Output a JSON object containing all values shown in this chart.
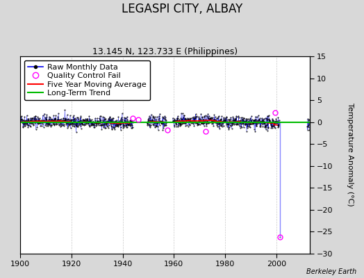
{
  "title": "LEGASPI CITY, ALBAY",
  "subtitle": "13.145 N, 123.733 E (Philippines)",
  "ylabel": "Temperature Anomaly (°C)",
  "attribution": "Berkeley Earth",
  "xlim": [
    1900,
    2013
  ],
  "ylim": [
    -30,
    15
  ],
  "yticks": [
    -30,
    -25,
    -20,
    -15,
    -10,
    -5,
    0,
    5,
    10,
    15
  ],
  "xticks": [
    1900,
    1920,
    1940,
    1960,
    1980,
    2000
  ],
  "x_start": 1900,
  "x_end": 2013,
  "noise_seed": 42,
  "bg_color": "#d8d8d8",
  "plot_bg_color": "#ffffff",
  "line_color_raw": "#0000ee",
  "line_color_ma": "#ff0000",
  "line_color_trend": "#00bb00",
  "qc_color": "#ff00ff",
  "outlier_line_color": "#8888ff",
  "grid_color": "#bbbbbb",
  "title_fontsize": 12,
  "subtitle_fontsize": 9,
  "tick_fontsize": 8,
  "legend_fontsize": 8,
  "ylabel_fontsize": 8,
  "gap1_start": 1944.0,
  "gap1_end": 1949.5,
  "gap2_start": 1957.0,
  "gap2_end": 1959.5,
  "outlier_x": 2001.5,
  "outlier_y": -26.3,
  "qc_fail_x": [
    1944.0,
    1946.0,
    1957.5,
    1972.5,
    1999.5,
    2001.5
  ],
  "qc_fail_y": [
    0.8,
    0.5,
    -1.8,
    -2.2,
    2.2,
    -26.3
  ]
}
